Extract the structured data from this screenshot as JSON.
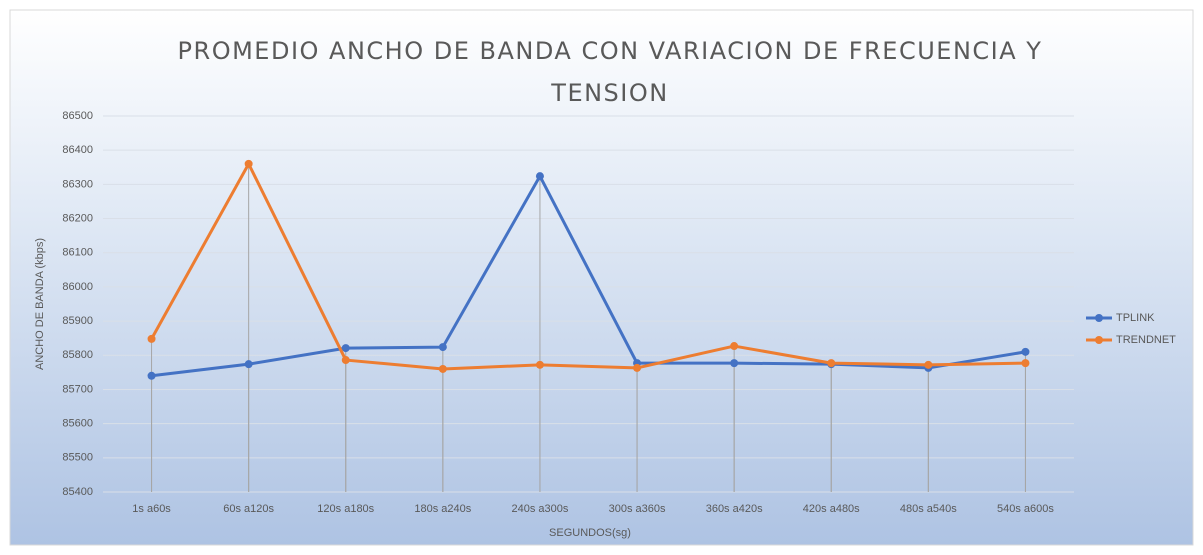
{
  "chart_data": {
    "type": "line",
    "title": "PROMEDIO ANCHO DE BANDA CON VARIACION DE FRECUENCIA Y TENSION",
    "x_label": "SEGUNDOS(sg)",
    "y_label": "ANCHO DE BANDA (kbps)",
    "categories": [
      "1s a60s",
      "60s a120s",
      "120s a180s",
      "180s a240s",
      "240s a300s",
      "300s a360s",
      "360s a420s",
      "420s a480s",
      "480s a540s",
      "540s a600s"
    ],
    "series": [
      {
        "name": "TPLINK",
        "color": "#4472c4",
        "values": [
          85740,
          85774,
          85821,
          85824,
          86324,
          85777,
          85777,
          85774,
          85763,
          85810
        ]
      },
      {
        "name": "TRENDNET",
        "color": "#ed7d31",
        "values": [
          85848,
          86360,
          85786,
          85760,
          85772,
          85763,
          85827,
          85777,
          85772,
          85777
        ]
      }
    ],
    "ylim": [
      85400,
      86500
    ],
    "yticks": [
      85400,
      85500,
      85600,
      85700,
      85800,
      85900,
      86000,
      86100,
      86200,
      86300,
      86400,
      86500
    ],
    "grid": true,
    "legend": "right"
  }
}
